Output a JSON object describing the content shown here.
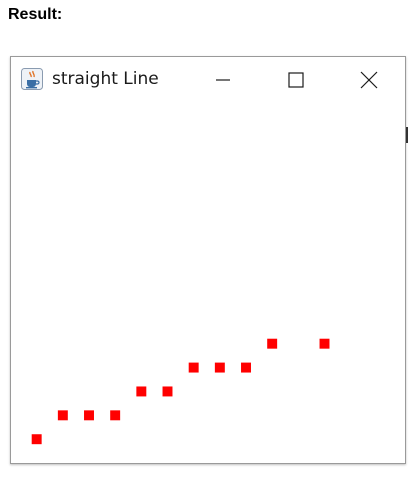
{
  "heading": "Result:",
  "window": {
    "title": "straight Line",
    "icon": "java-cup-icon",
    "controls": {
      "minimize": "minimize-icon",
      "maximize": "maximize-icon",
      "close": "close-icon"
    }
  },
  "plot": {
    "point_color": "#ff0000",
    "points": [
      {
        "x": 1,
        "y": 1
      },
      {
        "x": 2,
        "y": 2
      },
      {
        "x": 3,
        "y": 2
      },
      {
        "x": 4,
        "y": 2
      },
      {
        "x": 5,
        "y": 3
      },
      {
        "x": 6,
        "y": 3
      },
      {
        "x": 7,
        "y": 4
      },
      {
        "x": 8,
        "y": 4
      },
      {
        "x": 9,
        "y": 4
      },
      {
        "x": 10,
        "y": 5
      },
      {
        "x": 12,
        "y": 5
      }
    ]
  }
}
